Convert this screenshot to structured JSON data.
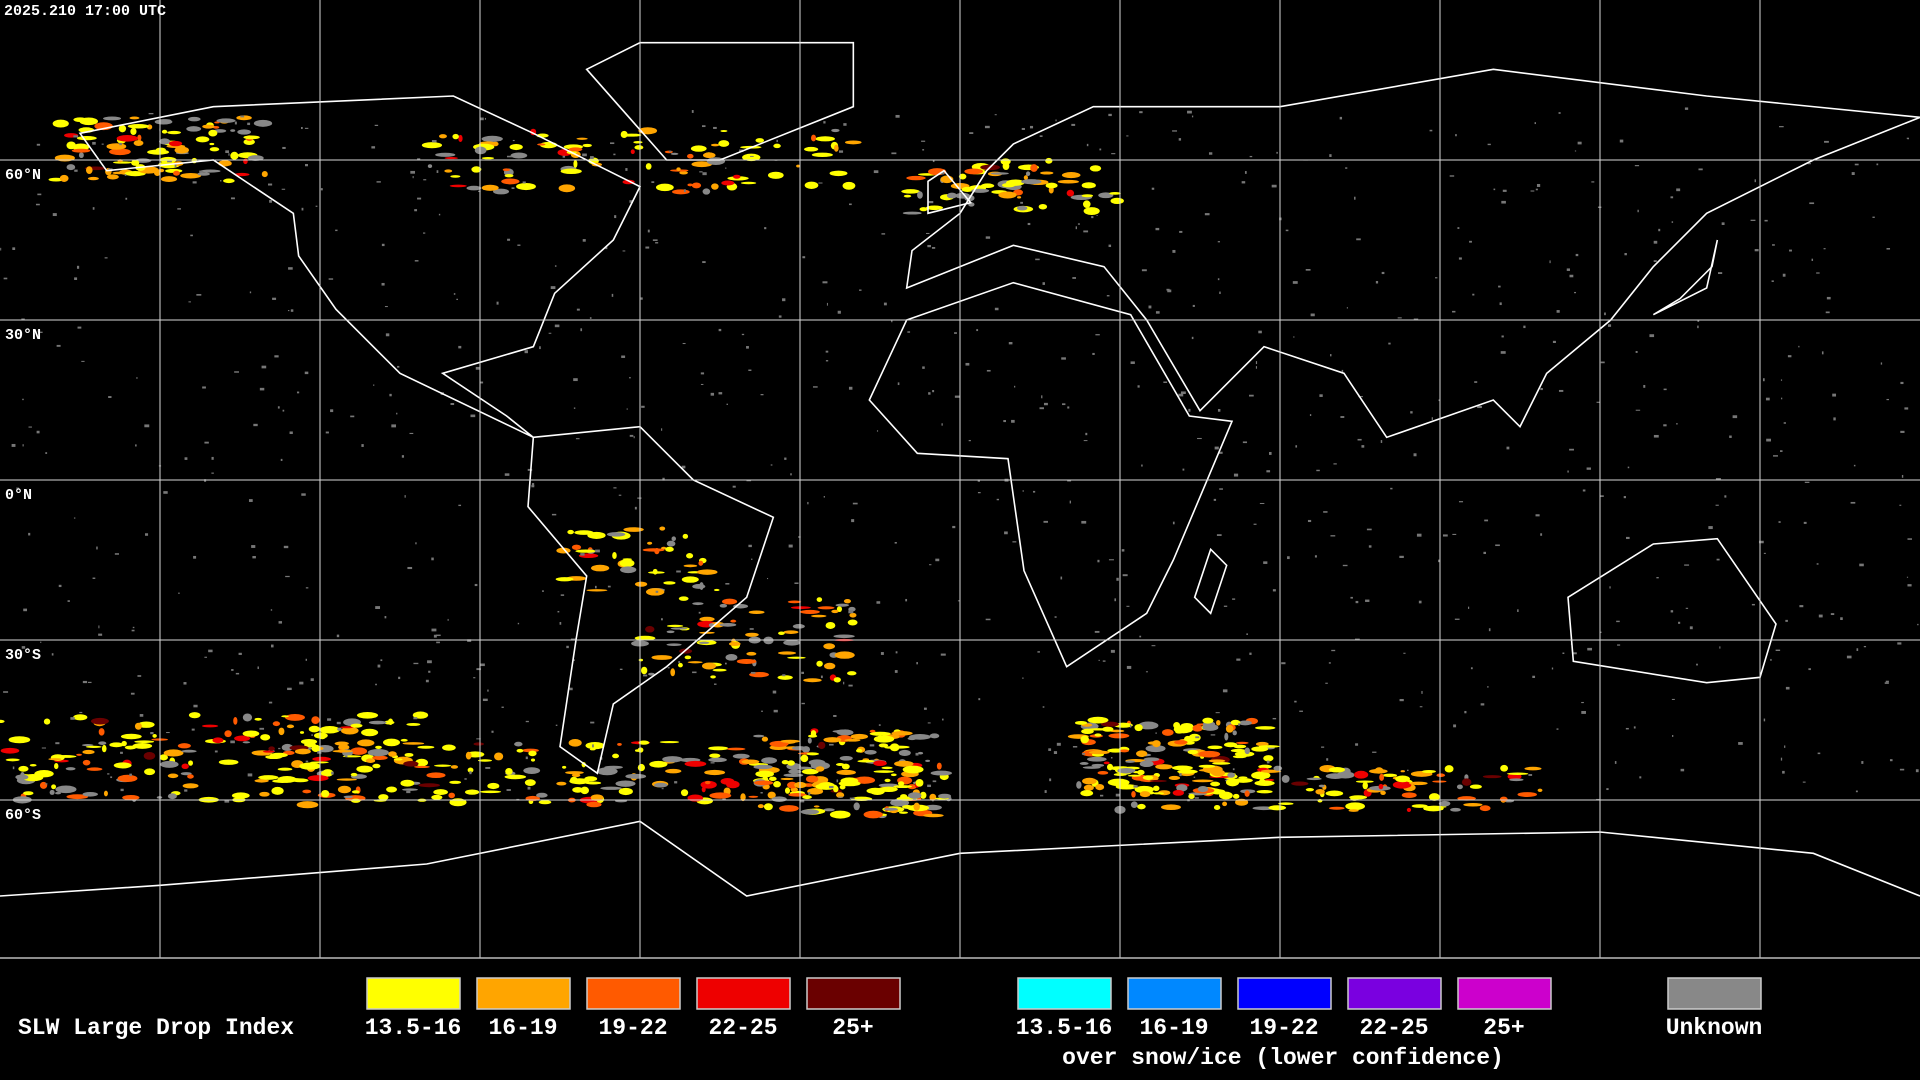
{
  "timestamp": "2025.210 17:00 UTC",
  "lat_labels": [
    "60°N",
    "30°N",
    "0°N",
    "30°S",
    "60°S"
  ],
  "legend": {
    "title": "SLW Large Drop Index",
    "items": [
      {
        "label": "13.5-16",
        "color": "#ffff00"
      },
      {
        "label": "16-19",
        "color": "#ffa500"
      },
      {
        "label": "19-22",
        "color": "#ff5a00"
      },
      {
        "label": "22-25",
        "color": "#ee0000"
      },
      {
        "label": "25+",
        "color": "#6a0000"
      }
    ],
    "snow_items": [
      {
        "label": "13.5-16",
        "color": "#00ffff"
      },
      {
        "label": "16-19",
        "color": "#0088ff"
      },
      {
        "label": "19-22",
        "color": "#0000ff"
      },
      {
        "label": "22-25",
        "color": "#7a00e0"
      },
      {
        "label": "25+",
        "color": "#cc00cc"
      }
    ],
    "snow_caption": "over snow/ice (lower confidence)",
    "unknown": {
      "label": "Unknown",
      "color": "#888888"
    }
  }
}
